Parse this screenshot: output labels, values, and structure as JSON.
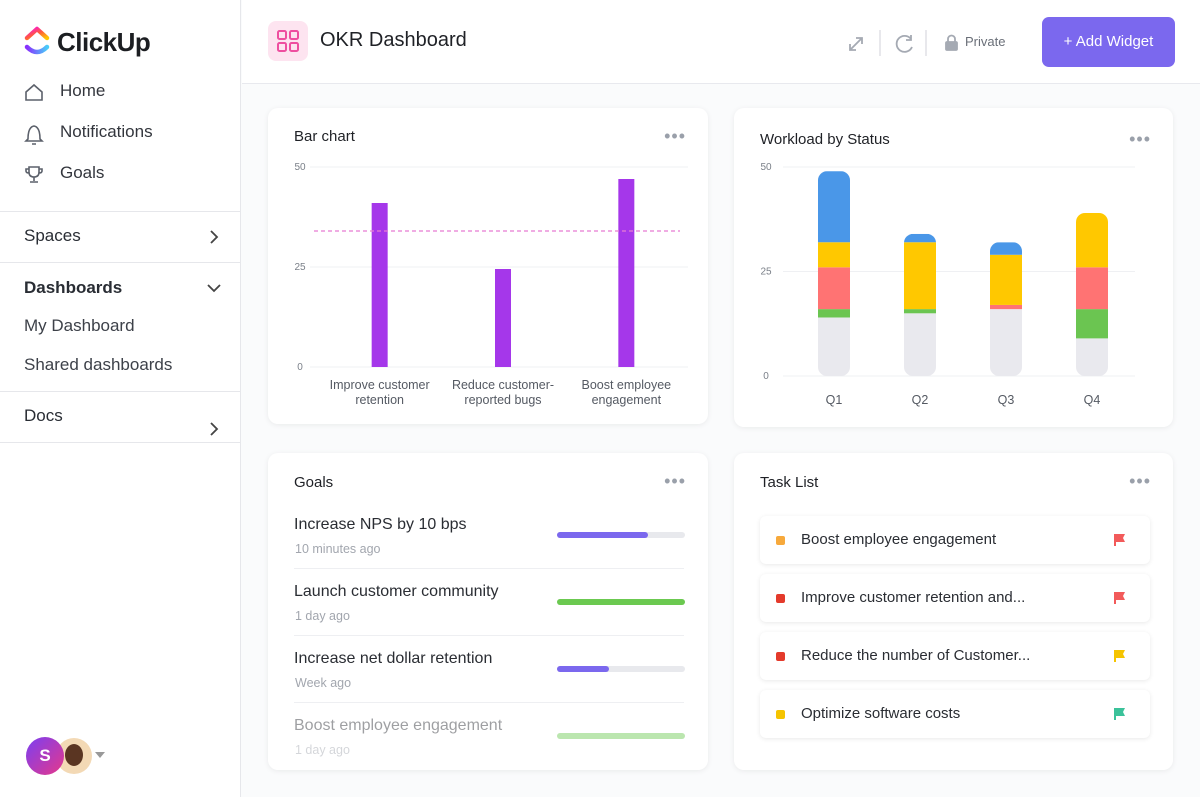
{
  "sidebar": {
    "logo": "ClickUp",
    "nav": [
      "Home",
      "Notifications",
      "Goals"
    ],
    "spaces": "Spaces",
    "dashboards": "Dashboards",
    "dashboard_items": [
      "My Dashboard",
      "Shared dashboards"
    ],
    "docs": "Docs",
    "avatar": "S"
  },
  "header": {
    "title": "OKR Dashboard",
    "privacy": "Private",
    "add_button": "+ Add Widget"
  },
  "chart_data": [
    {
      "type": "bar",
      "title": "Bar chart",
      "categories": [
        "Improve customer retention",
        "Reduce customer-reported bugs",
        "Boost employee engagement"
      ],
      "values": [
        41,
        24.5,
        47
      ],
      "color": "#a537ea",
      "target": 34,
      "target_color": "#e77bd2",
      "ylim": [
        0,
        50
      ],
      "yticks": [
        0,
        25,
        50
      ],
      "grid": true
    },
    {
      "type": "stacked_bar",
      "title": "Workload by Status",
      "categories": [
        "Q1",
        "Q2",
        "Q3",
        "Q4"
      ],
      "series": [
        {
          "color": "#e9e9ee",
          "values": [
            14,
            15,
            16,
            9
          ]
        },
        {
          "color": "#6bc551",
          "values": [
            2,
            1,
            0,
            7
          ]
        },
        {
          "color": "#ff7373",
          "values": [
            10,
            0,
            1,
            10
          ]
        },
        {
          "color": "#ffc800",
          "values": [
            6,
            16,
            12,
            13
          ]
        },
        {
          "color": "#4a97e8",
          "values": [
            17,
            2,
            3,
            0
          ]
        }
      ],
      "ylim": [
        0,
        50
      ],
      "yticks": [
        0,
        25,
        50
      ],
      "grid": true
    }
  ],
  "goals": {
    "title": "Goals",
    "items": [
      {
        "name": "Increase NPS by 10 bps",
        "time": "10 minutes ago",
        "progress": 71,
        "color": "#7b68ee"
      },
      {
        "name": "Launch customer community",
        "time": "1 day ago",
        "progress": 100,
        "color": "#6bc950"
      },
      {
        "name": "Increase net dollar retention",
        "time": "Week ago",
        "progress": 41,
        "color": "#7b68ee"
      },
      {
        "name": "Boost employee engagement",
        "time": "1 day ago",
        "progress": 100,
        "color": "#6bc950"
      }
    ]
  },
  "task_list": {
    "title": "Task List",
    "items": [
      {
        "name": "Boost employee engagement",
        "status_color": "#f7a93b",
        "flag_color": "#f25a5a"
      },
      {
        "name": "Improve customer retention and...",
        "status_color": "#e43a2b",
        "flag_color": "#f25a5a"
      },
      {
        "name": "Reduce the number of Customer...",
        "status_color": "#e43a2b",
        "flag_color": "#f5c400"
      },
      {
        "name": "Optimize software costs",
        "status_color": "#f5c400",
        "flag_color": "#3bc29a"
      }
    ]
  }
}
